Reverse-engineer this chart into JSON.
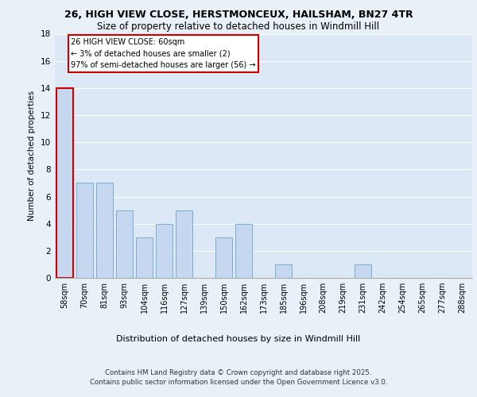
{
  "title1": "26, HIGH VIEW CLOSE, HERSTMONCEUX, HAILSHAM, BN27 4TR",
  "title2": "Size of property relative to detached houses in Windmill Hill",
  "xlabel": "Distribution of detached houses by size in Windmill Hill",
  "ylabel": "Number of detached properties",
  "categories": [
    "58sqm",
    "70sqm",
    "81sqm",
    "93sqm",
    "104sqm",
    "116sqm",
    "127sqm",
    "139sqm",
    "150sqm",
    "162sqm",
    "173sqm",
    "185sqm",
    "196sqm",
    "208sqm",
    "219sqm",
    "231sqm",
    "242sqm",
    "254sqm",
    "265sqm",
    "277sqm",
    "288sqm"
  ],
  "values": [
    14,
    7,
    7,
    5,
    3,
    4,
    5,
    0,
    3,
    4,
    0,
    1,
    0,
    0,
    0,
    1,
    0,
    0,
    0,
    0,
    0
  ],
  "bar_color": "#c5d8f0",
  "bar_edge_color": "#7aadd4",
  "highlight_index": 0,
  "annotation_text": "26 HIGH VIEW CLOSE: 60sqm\n← 3% of detached houses are smaller (2)\n97% of semi-detached houses are larger (56) →",
  "annotation_box_color": "#ffffff",
  "annotation_box_edge": "#cc0000",
  "ylim": [
    0,
    18
  ],
  "yticks": [
    0,
    2,
    4,
    6,
    8,
    10,
    12,
    14,
    16,
    18
  ],
  "footer": "Contains HM Land Registry data © Crown copyright and database right 2025.\nContains public sector information licensed under the Open Government Licence v3.0.",
  "bg_color": "#e8f0f8",
  "plot_bg": "#dce8f5",
  "grid_color": "#ffffff"
}
